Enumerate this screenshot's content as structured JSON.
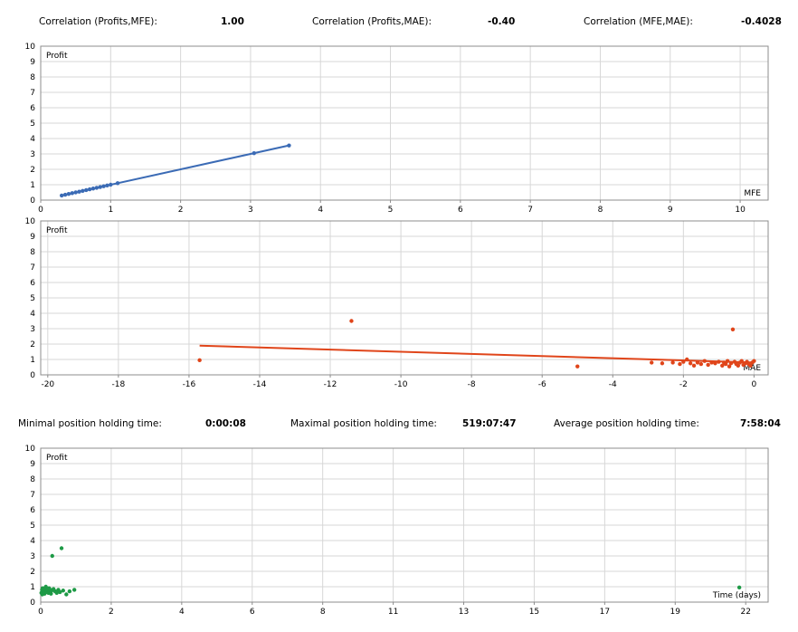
{
  "stats_top": [
    {
      "label": "Correlation (Profits,MFE):",
      "value": "1.00"
    },
    {
      "label": "Correlation (Profits,MAE):",
      "value": "-0.40"
    },
    {
      "label": "Correlation (MFE,MAE):",
      "value": "-0.4028"
    }
  ],
  "stats_mid": [
    {
      "label": "Minimal position holding time:",
      "value": "0:00:08"
    },
    {
      "label": "Maximal position holding time:",
      "value": "519:07:47"
    },
    {
      "label": "Average position holding time:",
      "value": "7:58:04"
    }
  ],
  "chart_data": [
    {
      "type": "scatter",
      "ylabel": "Profit",
      "xlabel": "MFE",
      "xlim": [
        0,
        10.4
      ],
      "ylim": [
        0,
        10
      ],
      "xticks": [
        "0",
        "1",
        "2",
        "3",
        "4",
        "5",
        "6",
        "7",
        "8",
        "9",
        "10"
      ],
      "yticks": [
        "0",
        "1",
        "2",
        "3",
        "4",
        "5",
        "6",
        "7",
        "8",
        "9",
        "10"
      ],
      "grid": true,
      "color": "#3b6bb5",
      "trendline": {
        "x": [
          0.3,
          3.55
        ],
        "y": [
          0.3,
          3.55
        ]
      },
      "points": [
        [
          0.3,
          0.3
        ],
        [
          0.35,
          0.35
        ],
        [
          0.4,
          0.4
        ],
        [
          0.45,
          0.45
        ],
        [
          0.5,
          0.5
        ],
        [
          0.55,
          0.55
        ],
        [
          0.6,
          0.6
        ],
        [
          0.65,
          0.65
        ],
        [
          0.7,
          0.7
        ],
        [
          0.75,
          0.75
        ],
        [
          0.8,
          0.8
        ],
        [
          0.85,
          0.85
        ],
        [
          0.9,
          0.9
        ],
        [
          0.95,
          0.95
        ],
        [
          1.0,
          1.0
        ],
        [
          1.1,
          1.1
        ],
        [
          3.05,
          3.05
        ],
        [
          3.55,
          3.55
        ]
      ]
    },
    {
      "type": "scatter",
      "ylabel": "Profit",
      "xlabel": "MAE",
      "xlim": [
        -20.2,
        0.4
      ],
      "ylim": [
        0,
        10
      ],
      "xticks": [
        "-20",
        "-18",
        "-16",
        "-14",
        "-12",
        "-10",
        "-8",
        "-6",
        "-4",
        "-2",
        "0"
      ],
      "yticks": [
        "0",
        "1",
        "2",
        "3",
        "4",
        "5",
        "6",
        "7",
        "8",
        "9",
        "10"
      ],
      "grid": true,
      "color": "#e0451a",
      "trendline": {
        "x": [
          -15.7,
          0
        ],
        "y": [
          1.9,
          0.8
        ]
      },
      "points": [
        [
          -15.7,
          0.95
        ],
        [
          -11.4,
          3.5
        ],
        [
          -5.0,
          0.55
        ],
        [
          -2.9,
          0.8
        ],
        [
          -2.6,
          0.75
        ],
        [
          -2.3,
          0.8
        ],
        [
          -2.1,
          0.7
        ],
        [
          -2.0,
          0.85
        ],
        [
          -1.9,
          1.0
        ],
        [
          -1.8,
          0.75
        ],
        [
          -1.7,
          0.6
        ],
        [
          -1.6,
          0.8
        ],
        [
          -1.5,
          0.7
        ],
        [
          -1.4,
          0.9
        ],
        [
          -1.3,
          0.65
        ],
        [
          -1.2,
          0.8
        ],
        [
          -1.1,
          0.75
        ],
        [
          -1.0,
          0.85
        ],
        [
          -0.9,
          0.6
        ],
        [
          -0.85,
          0.8
        ],
        [
          -0.8,
          0.7
        ],
        [
          -0.75,
          0.9
        ],
        [
          -0.7,
          0.55
        ],
        [
          -0.65,
          0.75
        ],
        [
          -0.6,
          2.95
        ],
        [
          -0.55,
          0.85
        ],
        [
          -0.5,
          0.7
        ],
        [
          -0.45,
          0.6
        ],
        [
          -0.4,
          0.8
        ],
        [
          -0.35,
          0.9
        ],
        [
          -0.3,
          0.65
        ],
        [
          -0.25,
          0.75
        ],
        [
          -0.2,
          0.85
        ],
        [
          -0.15,
          0.7
        ],
        [
          -0.1,
          0.6
        ],
        [
          -0.05,
          0.8
        ],
        [
          0.0,
          0.9
        ]
      ]
    },
    {
      "type": "scatter",
      "ylabel": "Profit",
      "xlabel": "Time (days)",
      "xlim": [
        0,
        22.7
      ],
      "ylim": [
        0,
        10
      ],
      "xticks": [
        "0",
        "2",
        "4",
        "6",
        "8",
        "11",
        "13",
        "15",
        "17",
        "19",
        "22"
      ],
      "xtick_values": [
        0,
        2.2,
        4.4,
        6.6,
        8.8,
        11,
        13.2,
        15.4,
        17.6,
        19.8,
        22
      ],
      "yticks": [
        "0",
        "1",
        "2",
        "3",
        "4",
        "5",
        "6",
        "7",
        "8",
        "9",
        "10"
      ],
      "grid": true,
      "color": "#1e9a46",
      "points": [
        [
          0.02,
          0.6
        ],
        [
          0.04,
          0.8
        ],
        [
          0.05,
          0.5
        ],
        [
          0.06,
          0.9
        ],
        [
          0.08,
          0.7
        ],
        [
          0.1,
          0.75
        ],
        [
          0.12,
          0.55
        ],
        [
          0.14,
          0.85
        ],
        [
          0.16,
          1.0
        ],
        [
          0.18,
          0.65
        ],
        [
          0.2,
          0.7
        ],
        [
          0.22,
          0.8
        ],
        [
          0.24,
          0.6
        ],
        [
          0.26,
          0.9
        ],
        [
          0.28,
          0.7
        ],
        [
          0.3,
          0.8
        ],
        [
          0.32,
          0.55
        ],
        [
          0.34,
          0.75
        ],
        [
          0.36,
          3.0
        ],
        [
          0.4,
          0.85
        ],
        [
          0.45,
          0.7
        ],
        [
          0.5,
          0.6
        ],
        [
          0.55,
          0.8
        ],
        [
          0.6,
          0.65
        ],
        [
          0.65,
          3.5
        ],
        [
          0.7,
          0.75
        ],
        [
          0.8,
          0.5
        ],
        [
          0.9,
          0.7
        ],
        [
          1.05,
          0.8
        ],
        [
          21.8,
          0.95
        ]
      ]
    }
  ]
}
